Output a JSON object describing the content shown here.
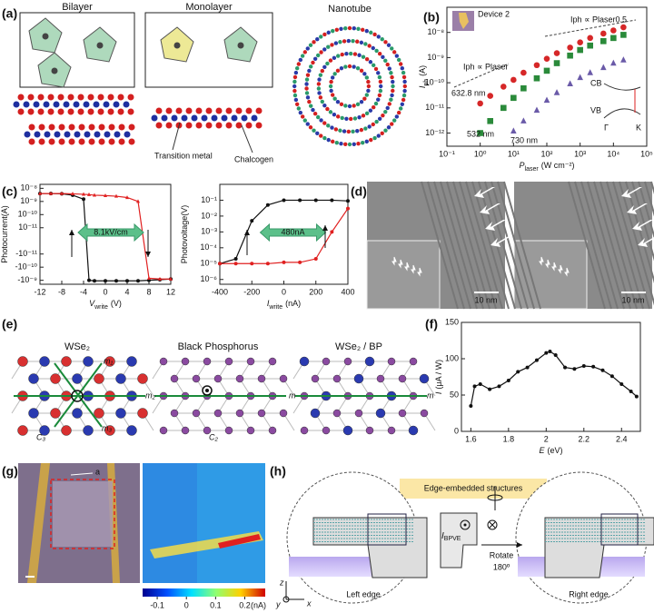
{
  "panels": {
    "a": {
      "label": "(a)",
      "titles": [
        "Bilayer",
        "Monolayer",
        "Nanotube"
      ],
      "legend": [
        "Transition metal",
        "Chalcogen"
      ]
    },
    "b": {
      "label": "(b)"
    },
    "c": {
      "label": "(c)"
    },
    "d": {
      "label": "(d)",
      "scale_bars": [
        "10 nm",
        "10 nm"
      ]
    },
    "e": {
      "label": "(e)",
      "titles": [
        "WSe₂",
        "Black Phosphorus",
        "WSe₂ / BP"
      ],
      "mirrors": [
        "m₁",
        "m₂",
        "m₃",
        "m",
        "m"
      ],
      "axes": [
        "C₃",
        "C₂"
      ]
    },
    "f": {
      "label": "(f)"
    },
    "g": {
      "label": "(g)",
      "marker": "a",
      "colorbar": {
        "ticks": [
          -0.1,
          0,
          0.1,
          0.2
        ],
        "unit": "(nA)"
      }
    },
    "h": {
      "label": "(h)",
      "title": "Edge-embedded structures",
      "current": "I",
      "current_sub": "BPVE",
      "rotate": "Rotate",
      "angle": "180º",
      "edges": [
        "Left edge",
        "Right edge"
      ],
      "axes": [
        "z",
        "y",
        "x"
      ]
    }
  },
  "chart_data": [
    {
      "type": "scatter",
      "xscale": "log",
      "yscale": "log",
      "xlim": [
        0.1,
        100000
      ],
      "ylim": [
        3e-13,
        1e-07
      ],
      "xticks": [
        {
          "value": 0.1,
          "label": "10⁻¹"
        },
        {
          "value": 1,
          "label": "10⁰"
        },
        {
          "value": 10,
          "label": "10¹"
        },
        {
          "value": 100,
          "label": "10²"
        },
        {
          "value": 1000,
          "label": "10³"
        },
        {
          "value": 10000,
          "label": "10⁴"
        },
        {
          "value": 100000,
          "label": "10⁵"
        }
      ],
      "yticks": [
        {
          "value": 1e-12,
          "label": "10⁻¹²"
        },
        {
          "value": 1e-11,
          "label": "10⁻¹¹"
        },
        {
          "value": 1e-10,
          "label": "10⁻¹⁰"
        },
        {
          "value": 1e-09,
          "label": "10⁻⁹"
        },
        {
          "value": 1e-08,
          "label": "10⁻⁸"
        }
      ],
      "xlabel": "P",
      "xlabel_sub": "laser",
      "xlabel_unit": "(W cm⁻²)",
      "ylabel": "I",
      "ylabel_sub": "ph",
      "ylabel_unit": "(A)",
      "x": [
        1,
        2,
        5,
        10,
        20,
        50,
        100,
        200,
        500,
        1000,
        2000,
        5000,
        10000,
        20000
      ],
      "series": [
        {
          "name": "632.8 nm",
          "color": "#d62728",
          "marker": "circle",
          "values": [
            1.5e-11,
            3e-11,
            7e-11,
            1.3e-10,
            2.5e-10,
            5e-10,
            9e-10,
            1.5e-09,
            2.5e-09,
            4e-09,
            6e-09,
            9e-09,
            1.2e-08,
            1.6e-08
          ]
        },
        {
          "name": "532 nm",
          "color": "#2a8a3a",
          "marker": "square",
          "values": [
            1e-12,
            3e-12,
            1e-11,
            2.5e-11,
            6e-11,
            1.5e-10,
            3e-10,
            6e-10,
            1.2e-09,
            2e-09,
            3e-09,
            4.5e-09,
            6e-09,
            8e-09
          ]
        },
        {
          "name": "730 nm",
          "color": "#6a5aa8",
          "marker": "triangle",
          "values": [
            null,
            null,
            null,
            1.2e-12,
            3e-12,
            8e-12,
            2e-11,
            4e-11,
            9e-11,
            1.6e-10,
            2.5e-10,
            4e-10,
            6e-10,
            8e-10
          ]
        }
      ],
      "annotations": [
        "Iph ∝ Plaser",
        "Iph ∝ Plaser0.5"
      ],
      "inset_labels": [
        "Device 2",
        "CB",
        "VB",
        "Γ",
        "K"
      ]
    },
    {
      "type": "line",
      "yscale": "symlog",
      "linthresh": 1e-11,
      "xlim": [
        -12,
        12
      ],
      "ylim": [
        -2e-09,
        2e-08
      ],
      "xticks": [
        -12,
        -8,
        -4,
        0,
        4,
        8,
        12
      ],
      "yticks": [
        {
          "value": 1e-08,
          "label": "10⁻⁸"
        },
        {
          "value": 1e-09,
          "label": "10⁻⁹"
        },
        {
          "value": 1e-10,
          "label": "10⁻¹⁰"
        },
        {
          "value": 1e-11,
          "label": "10⁻¹¹"
        },
        {
          "value": -1e-11,
          "label": "-10⁻¹¹"
        },
        {
          "value": -1e-10,
          "label": "-10⁻¹⁰"
        },
        {
          "value": -1e-09,
          "label": "-10⁻⁹"
        }
      ],
      "xlabel": "V",
      "xlabel_sub": "write",
      "xlabel_unit": "(V)",
      "ylabel": "Photocurrent(A)",
      "x": [
        -12,
        -10,
        -8,
        -6,
        -4,
        -3,
        -2,
        0,
        2,
        4,
        6,
        8,
        10,
        12
      ],
      "series": [
        {
          "color": "#111111",
          "marker": "circle",
          "values": [
            4e-09,
            4e-09,
            3.8e-09,
            3e-09,
            1.5e-09,
            -1e-09,
            -1.1e-09,
            -1.1e-09,
            -1.1e-09,
            -1.1e-09,
            -1.1e-09,
            -1e-09,
            -9e-10,
            -8e-10
          ]
        },
        {
          "color": "#e02020",
          "marker": "triangle",
          "values": [
            4e-09,
            4e-09,
            4e-09,
            3.8e-09,
            3.5e-09,
            3.3e-09,
            3e-09,
            2.8e-09,
            2.5e-09,
            2e-09,
            1e-09,
            -7e-10,
            -8e-10,
            -8e-10
          ]
        }
      ],
      "annotations": [
        "8.1kV/cm"
      ]
    },
    {
      "type": "line",
      "yscale": "log",
      "xlim": [
        -400,
        400
      ],
      "ylim": [
        5e-07,
        1
      ],
      "xticks": [
        -400,
        -200,
        0,
        200,
        400
      ],
      "yticks": [
        {
          "value": 1e-06,
          "label": "10⁻⁶"
        },
        {
          "value": 1e-05,
          "label": "10⁻⁵"
        },
        {
          "value": 0.0001,
          "label": "10⁻⁴"
        },
        {
          "value": 0.001,
          "label": "10⁻³"
        },
        {
          "value": 0.01,
          "label": "10⁻²"
        },
        {
          "value": 0.1,
          "label": "10⁻¹"
        }
      ],
      "xlabel": "I",
      "xlabel_sub": "write",
      "xlabel_unit": "(nA)",
      "ylabel": "Photovoltage(V)",
      "x": [
        -400,
        -300,
        -200,
        -100,
        0,
        100,
        200,
        300,
        400
      ],
      "series": [
        {
          "color": "#111111",
          "marker": "circle",
          "values": [
            1e-05,
            2e-05,
            0.005,
            0.05,
            0.1,
            0.1,
            0.1,
            0.1,
            0.09
          ]
        },
        {
          "color": "#e02020",
          "marker": "circle",
          "values": [
            1e-05,
            1e-05,
            1e-05,
            1e-05,
            1.2e-05,
            1.2e-05,
            2e-05,
            0.001,
            0.03
          ]
        }
      ],
      "annotations": [
        "480nA"
      ]
    },
    {
      "type": "line",
      "xlim": [
        1.55,
        2.5
      ],
      "ylim": [
        0,
        150
      ],
      "xticks": [
        1.6,
        1.8,
        2,
        2.2,
        2.4
      ],
      "yticks": [
        0,
        50,
        100,
        150
      ],
      "xlabel": "E",
      "xlabel_unit": "(eV)",
      "ylabel": "I",
      "ylabel_unit": "(μA / W)",
      "x": [
        1.6,
        1.62,
        1.65,
        1.7,
        1.75,
        1.8,
        1.85,
        1.9,
        1.95,
        2,
        2.02,
        2.05,
        2.1,
        2.15,
        2.2,
        2.25,
        2.3,
        2.35,
        2.4,
        2.45,
        2.48
      ],
      "series": [
        {
          "color": "#111111",
          "marker": "circle",
          "values": [
            35,
            62,
            65,
            58,
            62,
            70,
            82,
            88,
            98,
            108,
            110,
            105,
            88,
            86,
            90,
            89,
            84,
            76,
            65,
            55,
            48
          ]
        }
      ]
    }
  ]
}
